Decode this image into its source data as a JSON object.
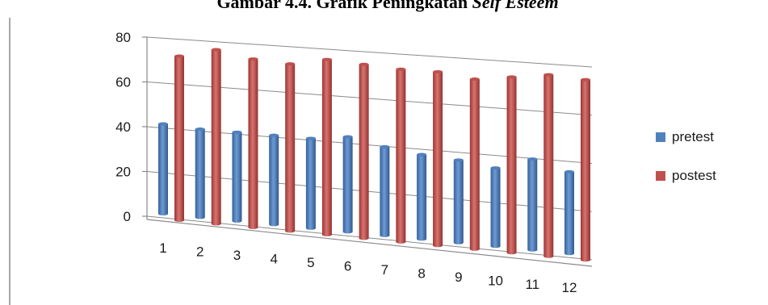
{
  "chart_data": {
    "type": "bar",
    "title": "Gambar 4.4. Grafik Peningkatan ",
    "title_italic": "Self Esteem",
    "xlabel": "",
    "ylabel": "",
    "categories": [
      "1",
      "2",
      "3",
      "4",
      "5",
      "6",
      "7",
      "8",
      "9",
      "10",
      "11",
      "12"
    ],
    "series": [
      {
        "name": "pretest",
        "color": "#4f81bd",
        "values": [
          40,
          39,
          39,
          39,
          39,
          41,
          38,
          36,
          35,
          33,
          38,
          34
        ]
      },
      {
        "name": "postest",
        "color": "#c0504d",
        "values": [
          73,
          77,
          74,
          73,
          76,
          75,
          74,
          74,
          72,
          74,
          76,
          75
        ]
      }
    ],
    "ylim": [
      0,
      80
    ],
    "yticks": [
      "0",
      "20",
      "40",
      "60",
      "80"
    ],
    "grid": true,
    "legend": "right",
    "view": "3d-perspective"
  }
}
